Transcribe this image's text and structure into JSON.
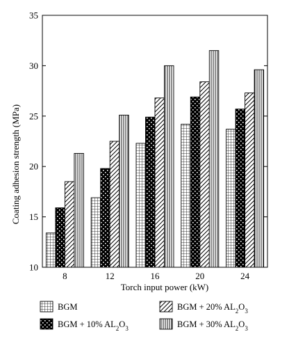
{
  "chart_data": {
    "type": "bar",
    "title": "",
    "xlabel": "Torch input power (kW)",
    "ylabel": "Coating adhesion strength (MPa)",
    "categories": [
      "8",
      "12",
      "16",
      "20",
      "24"
    ],
    "ylim": [
      10,
      35
    ],
    "yticks": [
      10,
      15,
      20,
      25,
      30,
      35
    ],
    "grid": false,
    "legend_position": "bottom",
    "series": [
      {
        "name": "BGM",
        "name_parts": [
          "BGM",
          "",
          ""
        ],
        "pattern": "grid",
        "values": [
          13.4,
          16.9,
          22.3,
          24.2,
          23.7
        ]
      },
      {
        "name": "BGM + 10% AL2O3",
        "name_parts": [
          "BGM + 10% AL",
          "2",
          "O"
        ],
        "name_sub2": "3",
        "pattern": "black-dots",
        "values": [
          15.9,
          19.8,
          24.9,
          26.9,
          25.7
        ]
      },
      {
        "name": "BGM + 20% AL2O3",
        "name_parts": [
          "BGM + 20% AL",
          "2",
          "O"
        ],
        "name_sub2": "3",
        "pattern": "diagonal",
        "values": [
          18.5,
          22.5,
          26.8,
          28.4,
          27.3
        ]
      },
      {
        "name": "BGM + 30% AL2O3",
        "name_parts": [
          "BGM + 30% AL",
          "2",
          "O"
        ],
        "name_sub2": "3",
        "pattern": "vertical",
        "values": [
          21.3,
          25.1,
          30.0,
          31.5,
          29.6
        ]
      }
    ]
  }
}
